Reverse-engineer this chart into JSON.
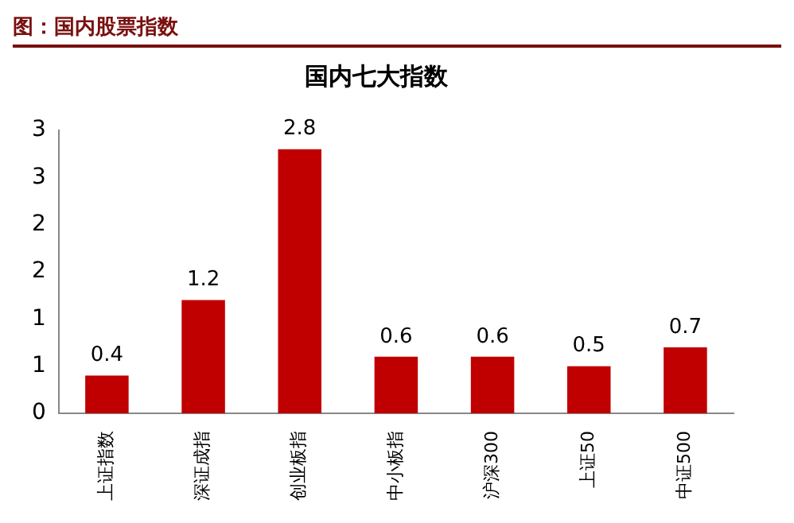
{
  "chart_data": {
    "type": "bar",
    "title": "国内七大指数",
    "annotations": [
      "图：国内股票指数"
    ],
    "categories": [
      "上证指数",
      "深证成指",
      "创业板指",
      "中小板指",
      "沪深300",
      "上证50",
      "中证500"
    ],
    "values": [
      0.4,
      1.2,
      2.8,
      0.6,
      0.6,
      0.5,
      0.7
    ],
    "color": "#c00000",
    "data_labels": true,
    "ylim": [
      0,
      3
    ],
    "yticks": [
      0,
      {
        "value": 0.5,
        "label": "1"
      },
      1,
      {
        "value": 1.5,
        "label": "2"
      },
      2,
      {
        "value": 2.5,
        "label": "3"
      },
      3
    ],
    "grid": false,
    "legend": false
  }
}
